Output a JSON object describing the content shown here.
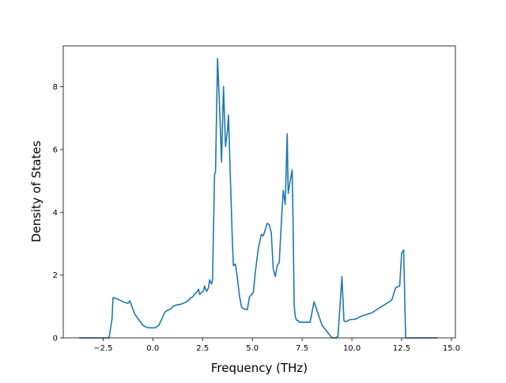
{
  "chart_data": {
    "type": "line",
    "title": "",
    "xlabel": "Frequency (THz)",
    "ylabel": "Density of States",
    "xlim": [
      -4.5,
      15.2
    ],
    "ylim": [
      0,
      9.3
    ],
    "xticks": [
      -2.5,
      0.0,
      2.5,
      5.0,
      7.5,
      10.0,
      12.5,
      15.0
    ],
    "xtick_labels": [
      "−2.5",
      "0.0",
      "2.5",
      "5.0",
      "7.5",
      "10.0",
      "12.5",
      "15.0"
    ],
    "yticks": [
      0,
      2,
      4,
      6,
      8
    ],
    "ytick_labels": [
      "0",
      "2",
      "4",
      "6",
      "8"
    ],
    "grid": false,
    "legend": null,
    "series": [
      {
        "color": "#1f77b4",
        "x": [
          -3.7,
          -2.2,
          -2.05,
          -2.0,
          -1.8,
          -1.5,
          -1.25,
          -1.15,
          -1.05,
          -0.9,
          -0.75,
          -0.5,
          -0.3,
          -0.1,
          0.1,
          0.3,
          0.45,
          0.6,
          0.75,
          0.9,
          1.0,
          1.2,
          1.4,
          1.6,
          1.8,
          1.9,
          2.0,
          2.1,
          2.2,
          2.3,
          2.35,
          2.45,
          2.55,
          2.6,
          2.7,
          2.8,
          2.85,
          2.95,
          3.0,
          3.1,
          3.15,
          3.25,
          3.35,
          3.45,
          3.55,
          3.65,
          3.75,
          3.8,
          3.9,
          4.0,
          4.05,
          4.15,
          4.25,
          4.35,
          4.45,
          4.5,
          4.6,
          4.75,
          4.85,
          5.05,
          5.15,
          5.3,
          5.45,
          5.55,
          5.75,
          5.85,
          5.95,
          6.05,
          6.15,
          6.25,
          6.35,
          6.45,
          6.55,
          6.65,
          6.75,
          6.8,
          6.9,
          7.0,
          7.05,
          7.1,
          7.15,
          7.2,
          7.25,
          7.3,
          7.35,
          7.45,
          7.6,
          7.9,
          8.1,
          8.5,
          9.0,
          9.1,
          9.2,
          9.3,
          9.5,
          9.6,
          9.65,
          9.7,
          9.8,
          9.9,
          10.2,
          10.5,
          11.0,
          11.5,
          12.0,
          12.2,
          12.4,
          12.5,
          12.6,
          12.7,
          12.75,
          12.85,
          12.9,
          13.0,
          14.3
        ],
        "y": [
          0,
          0,
          0.6,
          1.28,
          1.25,
          1.15,
          1.1,
          1.18,
          1.0,
          0.75,
          0.62,
          0.4,
          0.33,
          0.32,
          0.32,
          0.4,
          0.6,
          0.82,
          0.88,
          0.92,
          1.0,
          1.05,
          1.07,
          1.12,
          1.2,
          1.28,
          1.3,
          1.4,
          1.45,
          1.55,
          1.38,
          1.45,
          1.5,
          1.65,
          1.48,
          1.6,
          1.85,
          1.72,
          1.85,
          5.2,
          5.3,
          8.9,
          7.4,
          5.6,
          8.0,
          6.1,
          6.6,
          7.1,
          5.0,
          3.0,
          2.3,
          2.35,
          1.9,
          1.35,
          1.0,
          0.95,
          0.92,
          0.9,
          1.3,
          1.45,
          2.1,
          2.85,
          3.3,
          3.25,
          3.65,
          3.6,
          3.35,
          2.2,
          1.95,
          2.3,
          2.4,
          3.6,
          4.7,
          4.25,
          6.5,
          4.6,
          5.0,
          5.35,
          3.5,
          1.05,
          0.7,
          0.6,
          0.55,
          0.55,
          0.5,
          0.5,
          0.5,
          0.5,
          1.15,
          0.4,
          0,
          0,
          0,
          0.05,
          1.95,
          0.55,
          0.52,
          0.52,
          0.55,
          0.58,
          0.6,
          0.7,
          0.8,
          1.0,
          1.2,
          1.6,
          1.65,
          2.7,
          2.8,
          0,
          0,
          0,
          0,
          0,
          0
        ]
      }
    ]
  }
}
